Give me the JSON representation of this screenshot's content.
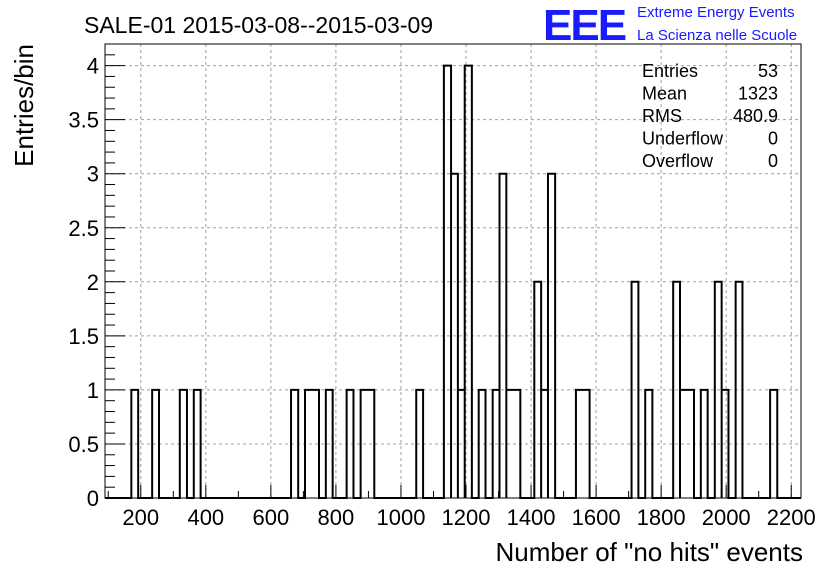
{
  "title": "SALE-01 2015-03-08--2015-03-09",
  "logo": {
    "mark": "EEE",
    "line1": "Extreme Energy Events",
    "line2": "La Scienza nelle Scuole",
    "color": "#1a1aff"
  },
  "stats": [
    {
      "label": "Entries",
      "value": "53"
    },
    {
      "label": "Mean",
      "value": "1323"
    },
    {
      "label": "RMS",
      "value": "480.9"
    },
    {
      "label": "Underflow",
      "value": "0"
    },
    {
      "label": "Overflow",
      "value": "0"
    }
  ],
  "chart_data": {
    "type": "bar",
    "style": "step-histogram",
    "xlabel": "Number of \"no hits\" events",
    "ylabel": "Entries/bin",
    "xlim": [
      90,
      2230
    ],
    "ylim": [
      0,
      4.2
    ],
    "grid": true,
    "legend": "top-right stats box",
    "x_ticks": [
      200,
      400,
      600,
      800,
      1000,
      1200,
      1400,
      1600,
      1800,
      2000,
      2200
    ],
    "x_tick_labels": [
      "200",
      "400",
      "600",
      "800",
      "1000",
      "1200",
      "1400",
      "1600",
      "1800",
      "2000",
      "2200"
    ],
    "y_ticks": [
      0,
      0.5,
      1,
      1.5,
      2,
      2.5,
      3,
      3.5,
      4
    ],
    "y_tick_labels": [
      "0",
      "0.5",
      "1",
      "1.5",
      "2",
      "2.5",
      "3",
      "3.5",
      "4"
    ],
    "bin_edges": [
      90,
      2230
    ],
    "bins": [
      {
        "x0": 171,
        "x1": 192,
        "count": 1
      },
      {
        "x0": 235,
        "x1": 256,
        "count": 1
      },
      {
        "x0": 320,
        "x1": 342,
        "count": 1
      },
      {
        "x0": 363,
        "x1": 384,
        "count": 1
      },
      {
        "x0": 662,
        "x1": 684,
        "count": 1
      },
      {
        "x0": 705,
        "x1": 748,
        "count": 1
      },
      {
        "x0": 769,
        "x1": 790,
        "count": 1
      },
      {
        "x0": 833,
        "x1": 854,
        "count": 1
      },
      {
        "x0": 876,
        "x1": 918,
        "count": 1
      },
      {
        "x0": 1047,
        "x1": 1068,
        "count": 1
      },
      {
        "x0": 1132,
        "x1": 1154,
        "count": 4
      },
      {
        "x0": 1154,
        "x1": 1175,
        "count": 3
      },
      {
        "x0": 1175,
        "x1": 1196,
        "count": 1
      },
      {
        "x0": 1196,
        "x1": 1218,
        "count": 4
      },
      {
        "x0": 1239,
        "x1": 1260,
        "count": 1
      },
      {
        "x0": 1282,
        "x1": 1303,
        "count": 1
      },
      {
        "x0": 1303,
        "x1": 1324,
        "count": 3
      },
      {
        "x0": 1324,
        "x1": 1367,
        "count": 1
      },
      {
        "x0": 1410,
        "x1": 1431,
        "count": 2
      },
      {
        "x0": 1431,
        "x1": 1452,
        "count": 1
      },
      {
        "x0": 1452,
        "x1": 1474,
        "count": 3
      },
      {
        "x0": 1538,
        "x1": 1580,
        "count": 1
      },
      {
        "x0": 1709,
        "x1": 1730,
        "count": 2
      },
      {
        "x0": 1751,
        "x1": 1773,
        "count": 1
      },
      {
        "x0": 1837,
        "x1": 1858,
        "count": 2
      },
      {
        "x0": 1858,
        "x1": 1901,
        "count": 1
      },
      {
        "x0": 1922,
        "x1": 1943,
        "count": 1
      },
      {
        "x0": 1965,
        "x1": 1986,
        "count": 2
      },
      {
        "x0": 1986,
        "x1": 2007,
        "count": 1
      },
      {
        "x0": 2029,
        "x1": 2050,
        "count": 2
      },
      {
        "x0": 2135,
        "x1": 2157,
        "count": 1
      }
    ]
  }
}
